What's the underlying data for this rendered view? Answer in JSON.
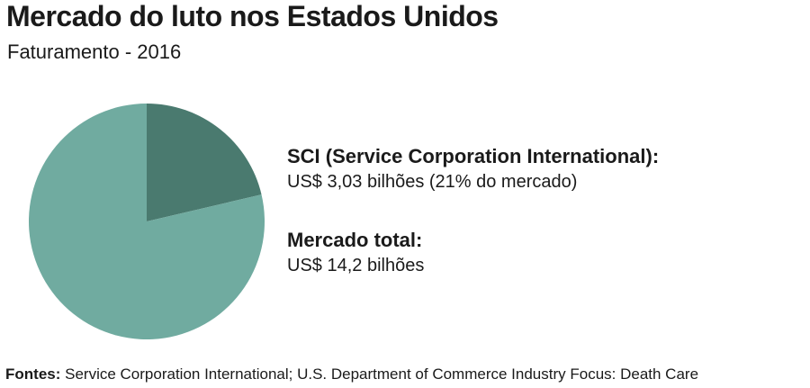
{
  "chart_data": {
    "type": "pie",
    "title": "Mercado do luto nos Estados Unidos",
    "subtitle": "Faturamento - 2016",
    "slices": [
      {
        "value": 3.03,
        "percent": 21,
        "color": "#4a7a6f"
      },
      {
        "value": 11.17,
        "percent": 79,
        "color": "#70aba0"
      }
    ],
    "total": 14.2,
    "legend": [
      {
        "heading": "SCI (Service Corporation International):",
        "value": "US$ 3,03 bilhões (21% do mercado)"
      },
      {
        "heading": "Mercado total:",
        "value": "US$ 14,2 bilhões"
      }
    ],
    "source_label": "Fontes:",
    "source_text": " Service Corporation International; U.S. Department of Commerce Industry Focus: Death Care"
  }
}
